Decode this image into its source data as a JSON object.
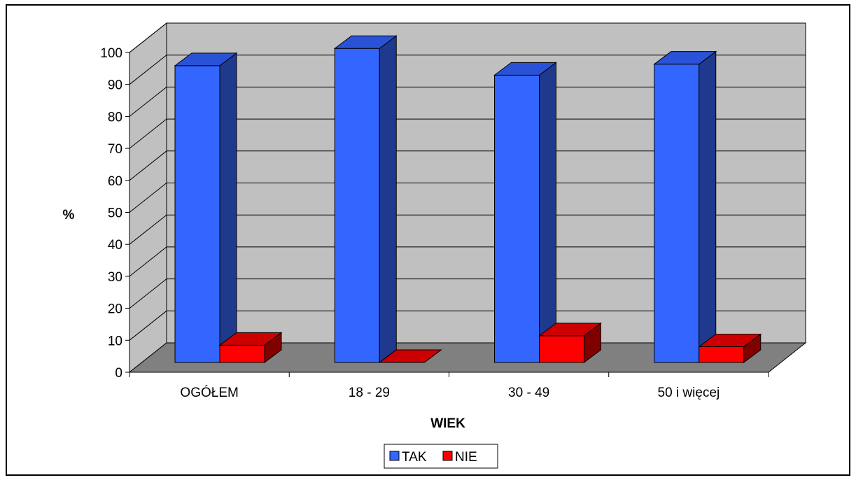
{
  "chart_data": {
    "type": "bar",
    "title": "",
    "xlabel": "WIEK",
    "ylabel": "%",
    "categories": [
      "OGÓŁEM",
      "18 - 29",
      "30 - 49",
      "50 i więcej"
    ],
    "series": [
      {
        "name": "TAK",
        "values": [
          94.5,
          100,
          91.5,
          95
        ],
        "color": "#3366ff"
      },
      {
        "name": "NIE",
        "values": [
          5.5,
          0,
          8.5,
          5
        ],
        "color": "#ff0000"
      }
    ],
    "yticks": [
      0,
      10,
      20,
      30,
      40,
      50,
      60,
      70,
      80,
      90,
      100
    ],
    "ylim": [
      0,
      100
    ],
    "grid": true,
    "legend_position": "bottom",
    "three_d": true,
    "colors": {
      "wall": "#c0c0c0",
      "floor": "#808080",
      "tak_front": "#3366ff",
      "tak_side": "#1f3a8c",
      "tak_top": "#2a52d6",
      "nie_front": "#ff0000",
      "nie_side": "#800000",
      "nie_top": "#cc0000"
    }
  }
}
